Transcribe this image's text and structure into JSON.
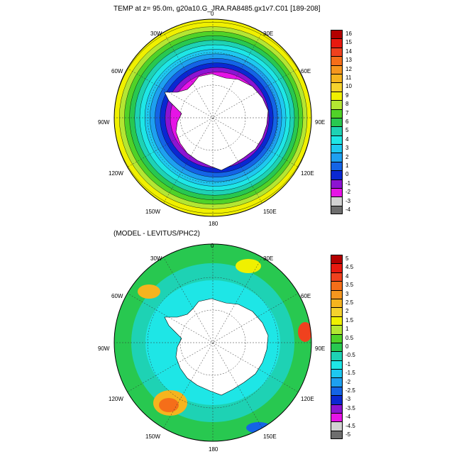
{
  "figure": {
    "top_title": "TEMP at z=  95.0m, g20a10.G_JRA.RA8485.gx1v7.C01 [189-208]",
    "bottom_title": "(MODEL - LEVITUS/PHC2)"
  },
  "map_labels": {
    "lon_0": "0",
    "lon_30w": "30W",
    "lon_30e": "30E",
    "lon_60w": "60W",
    "lon_60e": "60E",
    "lon_90w": "90W",
    "lon_90e": "90E",
    "lon_120w": "120W",
    "lon_120e": "120E",
    "lon_150w": "150W",
    "lon_150e": "150E",
    "lon_180": "180"
  },
  "top_colorbar": {
    "labels": [
      "16",
      "15",
      "14",
      "13",
      "12",
      "11",
      "10",
      "9",
      "8",
      "7",
      "6",
      "5",
      "4",
      "3",
      "2",
      "1",
      "0",
      "-1",
      "-2",
      "-3",
      "-4"
    ],
    "colors": [
      "#b40000",
      "#e8190f",
      "#f0411e",
      "#f56e19",
      "#f5961e",
      "#f5b41e",
      "#f5d22d",
      "#f0f000",
      "#b4e632",
      "#50d228",
      "#28c850",
      "#1ed2b4",
      "#1ee6e6",
      "#1ec8f0",
      "#1ea0f0",
      "#1464e6",
      "#0a28d2",
      "#8c14d2",
      "#e614e6",
      "#d2d2d2",
      "#6e6e6e"
    ]
  },
  "bottom_colorbar": {
    "labels": [
      "5",
      "4.5",
      "4",
      "3.5",
      "3",
      "2.5",
      "2",
      "1.5",
      "1",
      "0.5",
      "0",
      "-0.5",
      "-1",
      "-1.5",
      "-2",
      "-2.5",
      "-3",
      "-3.5",
      "-4",
      "-4.5",
      "-5"
    ],
    "colors": [
      "#b40000",
      "#e8190f",
      "#f0411e",
      "#f56e19",
      "#f5961e",
      "#f5b41e",
      "#f5d22d",
      "#f0f000",
      "#b4e632",
      "#50d228",
      "#28c850",
      "#1ed2b4",
      "#1ee6e6",
      "#1ec8f0",
      "#1ea0f0",
      "#1464e6",
      "#0a28d2",
      "#8c14d2",
      "#e614e6",
      "#d2d2d2",
      "#6e6e6e"
    ]
  },
  "top_field": {
    "center_value": -2,
    "rings": [
      {
        "value": "-2",
        "color": "#e614e6"
      },
      {
        "value": "-1",
        "color": "#8c14d2"
      },
      {
        "value": "0",
        "color": "#0a28d2"
      },
      {
        "value": "1",
        "color": "#1464e6"
      },
      {
        "value": "2",
        "color": "#1ea0f0"
      },
      {
        "value": "3",
        "color": "#1ec8f0"
      },
      {
        "value": "4",
        "color": "#1ee6e6"
      },
      {
        "value": "5",
        "color": "#1ed2b4"
      },
      {
        "value": "6",
        "color": "#28c850"
      },
      {
        "value": "7",
        "color": "#50d228"
      },
      {
        "value": "8",
        "color": "#b4e632"
      },
      {
        "value": "9",
        "color": "#f0f000"
      }
    ]
  },
  "bottom_field": {
    "background_value": "-0.5",
    "features": [
      {
        "region": "120W",
        "value": "3.5",
        "color": "#f56e19"
      },
      {
        "region": "60W",
        "value": "2.5",
        "color": "#f5b41e"
      },
      {
        "region": "30E",
        "value": "1.5",
        "color": "#f0f000"
      },
      {
        "region": "90E",
        "value": "4",
        "color": "#f0411e"
      },
      {
        "region": "150E",
        "value": "-3",
        "color": "#0a28d2"
      }
    ]
  }
}
